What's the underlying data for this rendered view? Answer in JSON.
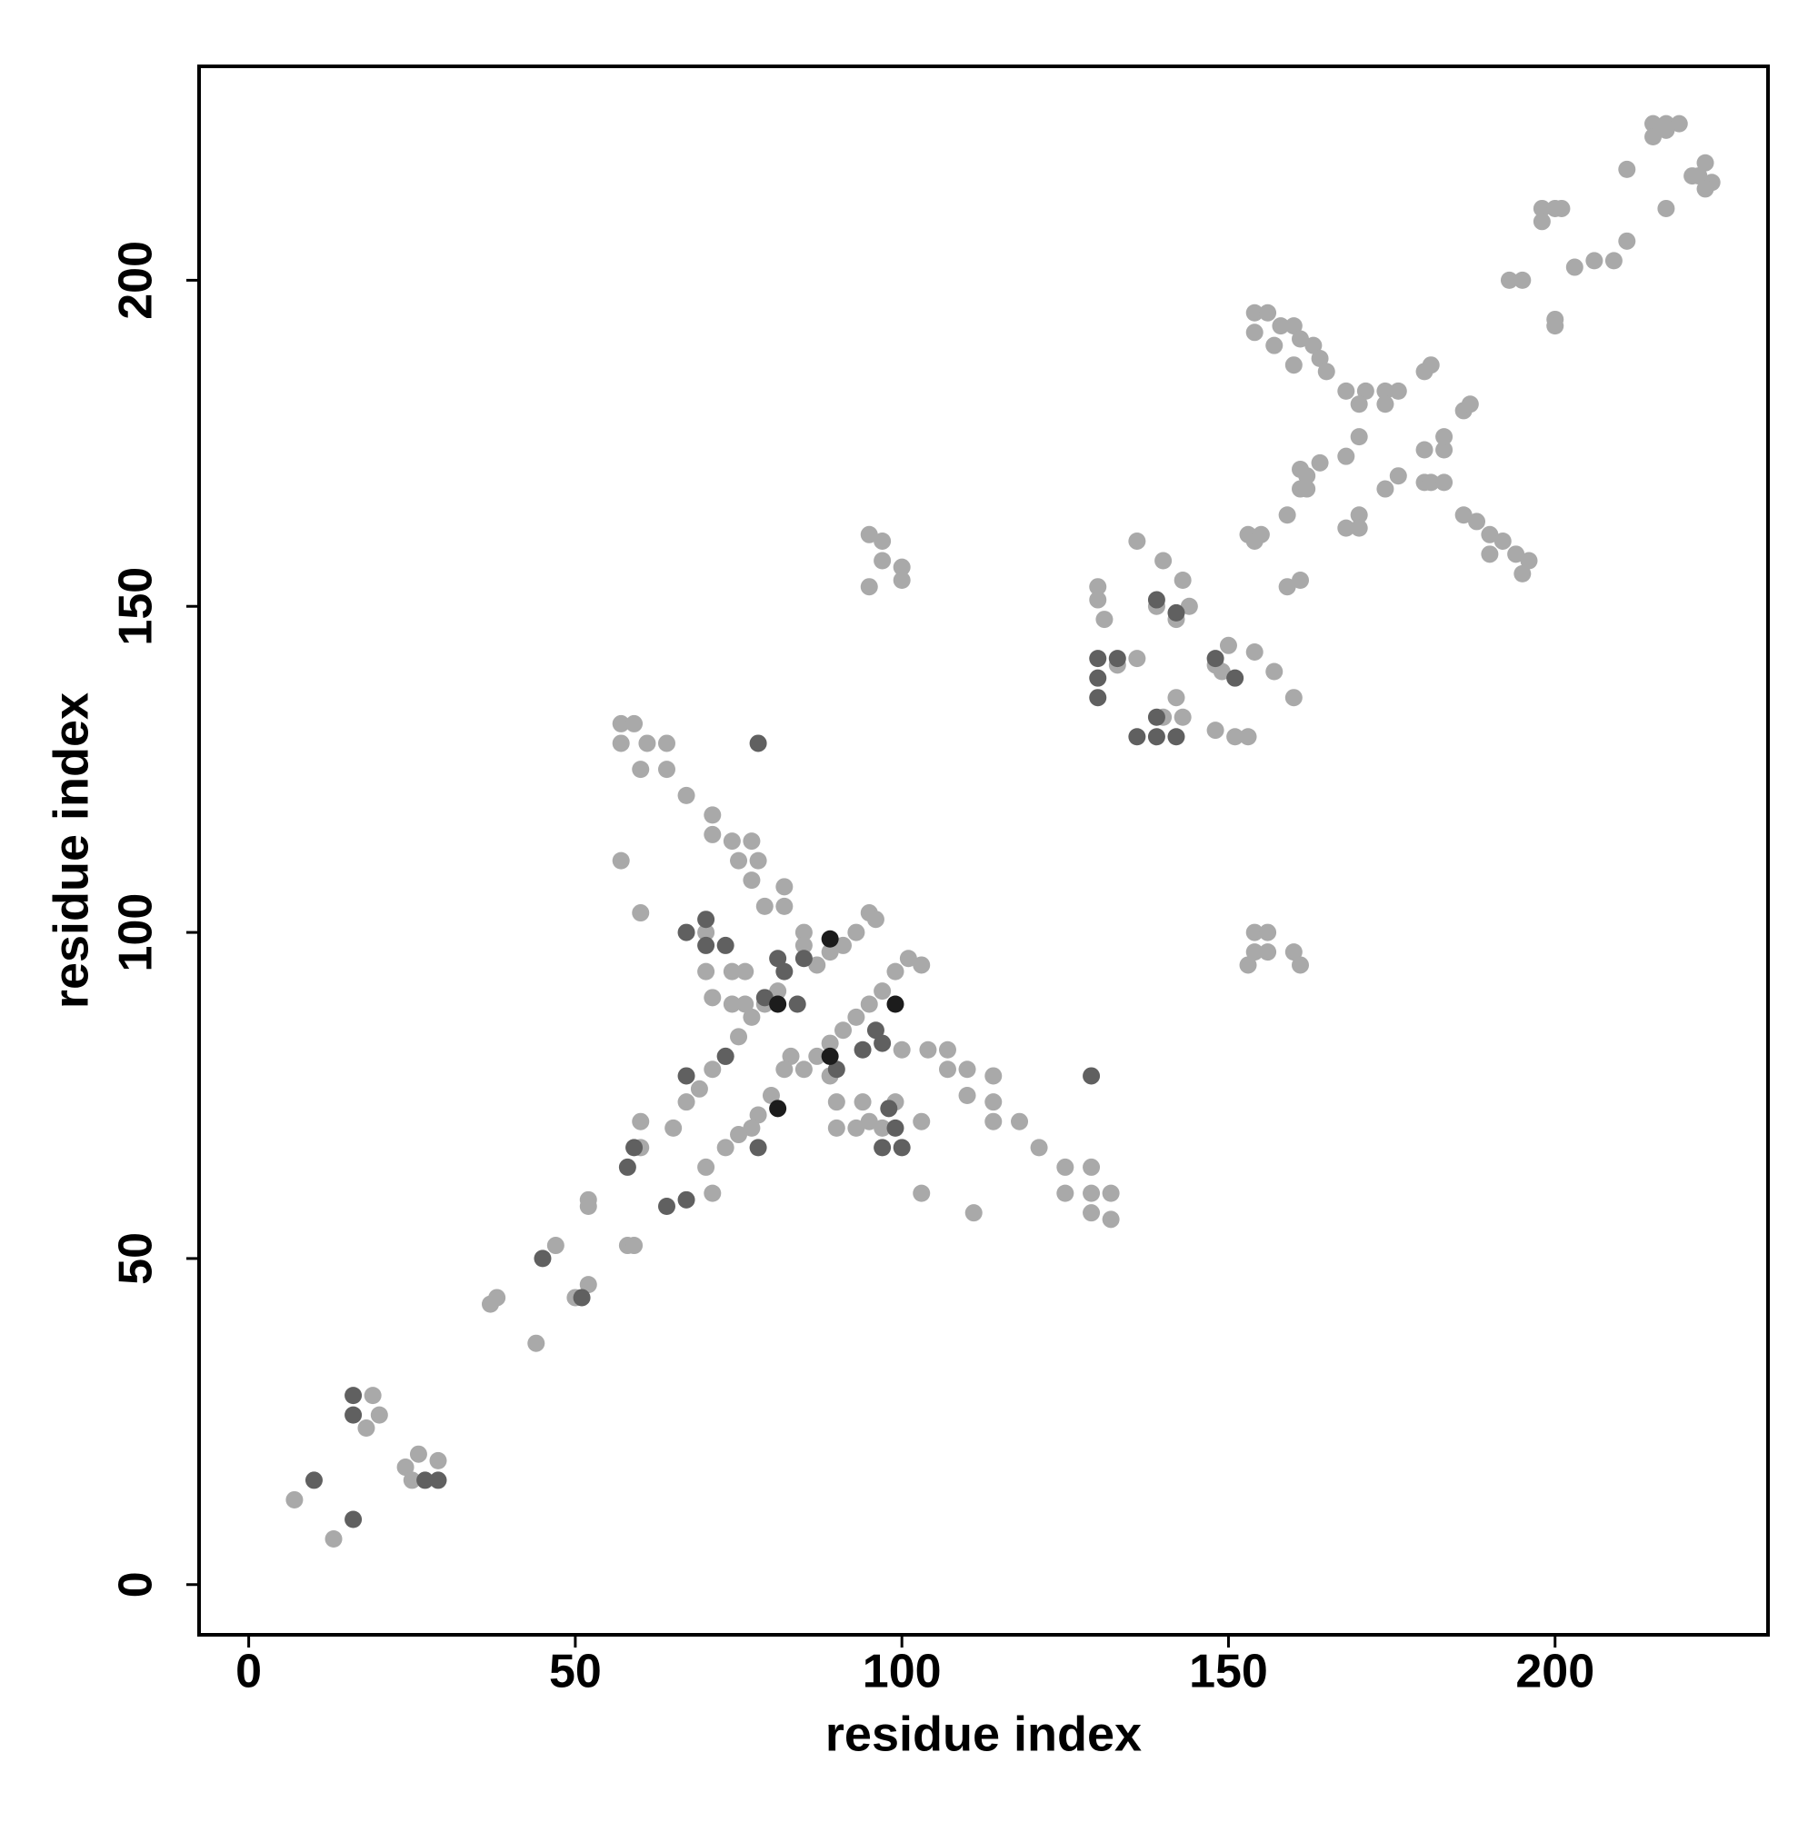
{
  "chart_data": {
    "type": "scatter",
    "xlabel": "residue index",
    "ylabel": "residue index",
    "xlim": [
      -7.6,
      232.6
    ],
    "ylim": [
      -7.7,
      232.8
    ],
    "xticks": [
      0,
      50,
      100,
      150,
      200
    ],
    "yticks": [
      0,
      50,
      100,
      150,
      200
    ],
    "series": [
      {
        "color": "#a9a9a9",
        "x": [
          7,
          13,
          19,
          18,
          20,
          24,
          26,
          25,
          29,
          37,
          38,
          44,
          47,
          50,
          52,
          52,
          52,
          58,
          59,
          60,
          60,
          65,
          70,
          71,
          57,
          59,
          57,
          61,
          60,
          64,
          64,
          67,
          71,
          71,
          74,
          75,
          77,
          78,
          77,
          82,
          79,
          82,
          85,
          85,
          57,
          60,
          100,
          104,
          107,
          107,
          110,
          110,
          114,
          114,
          114,
          118,
          121,
          125,
          129,
          125,
          129,
          132,
          132,
          129,
          111,
          103,
          103,
          103,
          83,
          82,
          80,
          78,
          77,
          75,
          73,
          67,
          69,
          71,
          73,
          75,
          77,
          79,
          81,
          85,
          87,
          89,
          91,
          93,
          95,
          97,
          99,
          101,
          87,
          89,
          91,
          93,
          95,
          96,
          70,
          71,
          74,
          76,
          76,
          74,
          70,
          89,
          90,
          90,
          93,
          94,
          95,
          97,
          99,
          95,
          97,
          95,
          97,
          100,
          100,
          153,
          154,
          156,
          156,
          160,
          161,
          154,
          130,
          130,
          131,
          136,
          140,
          143,
          139,
          142,
          144,
          136,
          133,
          142,
          140,
          143,
          148,
          151,
          153,
          150,
          154,
          157,
          160,
          153,
          154,
          155,
          159,
          161,
          148,
          149,
          154,
          156,
          158,
          160,
          161,
          163,
          164,
          165,
          154,
          157,
          160,
          186,
          188,
          190,
          192,
          194,
          196,
          195,
          190,
          168,
          171,
          174,
          176,
          170,
          174,
          170,
          168,
          174,
          176,
          170,
          168,
          170,
          180,
          180,
          181,
          183,
          183,
          183,
          180,
          181,
          186,
          187,
          161,
          162,
          164,
          161,
          162,
          159,
          193,
          195,
          200,
          200,
          198,
          198,
          200,
          201,
          203,
          206,
          209,
          211,
          211,
          217,
          215,
          217,
          219,
          215,
          217,
          222,
          223,
          224,
          223,
          221
        ],
        "y": [
          13,
          7,
          29,
          24,
          26,
          18,
          20,
          16,
          19,
          43,
          44,
          37,
          52,
          44,
          46,
          59,
          58,
          52,
          52,
          67,
          71,
          70,
          64,
          60,
          132,
          132,
          129,
          129,
          125,
          129,
          125,
          121,
          118,
          115,
          114,
          111,
          114,
          111,
          108,
          107,
          104,
          104,
          100,
          98,
          111,
          103,
          82,
          82,
          82,
          79,
          79,
          75,
          78,
          74,
          71,
          71,
          67,
          64,
          64,
          60,
          60,
          60,
          56,
          57,
          57,
          60,
          71,
          95,
          81,
          79,
          75,
          72,
          70,
          69,
          67,
          74,
          76,
          79,
          81,
          84,
          87,
          89,
          91,
          79,
          81,
          83,
          85,
          87,
          89,
          91,
          94,
          96,
          95,
          97,
          98,
          100,
          103,
          102,
          94,
          90,
          89,
          94,
          89,
          94,
          100,
          78,
          74,
          70,
          70,
          74,
          71,
          70,
          74,
          161,
          160,
          153,
          157,
          156,
          154,
          95,
          100,
          100,
          97,
          97,
          95,
          97,
          153,
          151,
          148,
          160,
          157,
          154,
          150,
          148,
          150,
          142,
          141,
          136,
          133,
          133,
          131,
          130,
          130,
          144,
          143,
          140,
          136,
          161,
          160,
          161,
          153,
          154,
          141,
          140,
          195,
          195,
          193,
          193,
          191,
          190,
          188,
          186,
          192,
          190,
          187,
          164,
          163,
          161,
          160,
          158,
          157,
          155,
          158,
          183,
          183,
          183,
          183,
          181,
          181,
          176,
          173,
          168,
          170,
          164,
          162,
          162,
          174,
          169,
          169,
          174,
          169,
          176,
          186,
          187,
          180,
          181,
          171,
          170,
          172,
          168,
          168,
          164,
          200,
          200,
          194,
          193,
          211,
          209,
          211,
          211,
          202,
          203,
          203,
          206,
          217,
          211,
          224,
          224,
          224,
          222,
          223,
          216,
          218,
          215,
          214,
          216
        ]
      },
      {
        "color": "#606060",
        "x": [
          10,
          16,
          16,
          16,
          27,
          29,
          45,
          51,
          58,
          59,
          64,
          67,
          67,
          70,
          70,
          73,
          81,
          82,
          79,
          84,
          67,
          73,
          78,
          90,
          94,
          96,
          97,
          98,
          97,
          100,
          99,
          78,
          85,
          129,
          130,
          130,
          130,
          136,
          139,
          142,
          139,
          139,
          142,
          148,
          151,
          133
        ],
        "y": [
          16,
          10,
          29,
          26,
          16,
          16,
          50,
          44,
          64,
          67,
          58,
          59,
          100,
          102,
          98,
          98,
          96,
          94,
          90,
          89,
          78,
          81,
          67,
          79,
          82,
          85,
          83,
          73,
          67,
          67,
          70,
          129,
          96,
          78,
          142,
          139,
          136,
          130,
          130,
          130,
          133,
          151,
          149,
          142,
          139,
          142
        ]
      },
      {
        "color": "#1c1c1c",
        "x": [
          89,
          99,
          81,
          89,
          81
        ],
        "y": [
          99,
          89,
          89,
          81,
          73
        ]
      }
    ]
  }
}
